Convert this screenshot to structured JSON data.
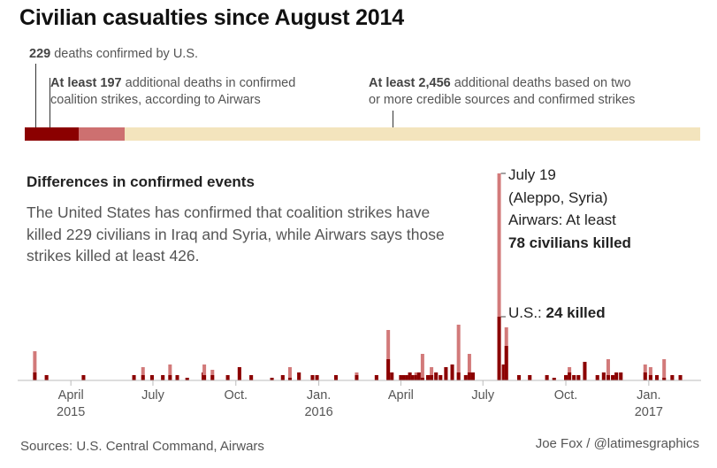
{
  "title": "Civilian casualties since August 2014",
  "summary": {
    "us_label": {
      "bold": "229",
      "text": " deaths confirmed by U.S."
    },
    "airwars_label": {
      "bold": "At least 197",
      "text1": " additional deaths in confirmed",
      "text2": "coalition strikes, according to Airwars"
    },
    "credible_label": {
      "bold": "At least 2,456",
      "text1": " additional deaths based on two",
      "text2": "or more credible sources and confirmed strikes"
    },
    "segments": [
      {
        "name": "U.S. confirmed",
        "value": 229,
        "color": "#8b0000"
      },
      {
        "name": "Airwars additional",
        "value": 197,
        "color": "#cd7070"
      },
      {
        "name": "Credible sources additional",
        "value": 2456,
        "color": "#f3e4bd"
      }
    ]
  },
  "subheading": "Differences in confirmed events",
  "description": "The United States has confirmed that coalition strikes have killed 229 civilians in Iraq and Syria, while Airwars says those strikes killed at least 426.",
  "annotation": {
    "line1": "July 19",
    "line2": "(Aleppo, Syria)",
    "line3": "Airwars: At least",
    "line4": "78 civilians killed",
    "us_prefix": "U.S.: ",
    "us_bold": "24 killed"
  },
  "source": "Sources: U.S. Central Command, Airwars",
  "credit": "Joe Fox / @latimesgraphics",
  "colors": {
    "us": "#8b0000",
    "airwars": "#d27a7a",
    "credible": "#f3e4bd"
  },
  "chart_data": {
    "type": "bar",
    "title": "Differences in confirmed events",
    "x_range": [
      "2015-02-01",
      "2017-02-28"
    ],
    "ylim": [
      0,
      80
    ],
    "x_ticks": [
      {
        "date": "2015-04-01",
        "label": "April",
        "sub": "2015"
      },
      {
        "date": "2015-07-01",
        "label": "July",
        "sub": ""
      },
      {
        "date": "2015-10-01",
        "label": "Oct.",
        "sub": ""
      },
      {
        "date": "2016-01-01",
        "label": "Jan.",
        "sub": "2016"
      },
      {
        "date": "2016-04-01",
        "label": "April",
        "sub": ""
      },
      {
        "date": "2016-07-01",
        "label": "July",
        "sub": ""
      },
      {
        "date": "2016-10-01",
        "label": "Oct.",
        "sub": ""
      },
      {
        "date": "2017-01-01",
        "label": "Jan.",
        "sub": "2017"
      }
    ],
    "series": [
      {
        "name": "Airwars",
        "color": "#d27a7a"
      },
      {
        "name": "U.S.",
        "color": "#8b0000"
      }
    ],
    "events": [
      {
        "date": "2015-02-20",
        "us": 3,
        "airwars": 11
      },
      {
        "date": "2015-03-05",
        "us": 2,
        "airwars": 2
      },
      {
        "date": "2015-04-15",
        "us": 2,
        "airwars": 2
      },
      {
        "date": "2015-06-10",
        "us": 2,
        "airwars": 2
      },
      {
        "date": "2015-06-20",
        "us": 2,
        "airwars": 5
      },
      {
        "date": "2015-06-30",
        "us": 2,
        "airwars": 2
      },
      {
        "date": "2015-07-12",
        "us": 2,
        "airwars": 2
      },
      {
        "date": "2015-07-20",
        "us": 2,
        "airwars": 6
      },
      {
        "date": "2015-07-28",
        "us": 2,
        "airwars": 2
      },
      {
        "date": "2015-08-08",
        "us": 1,
        "airwars": 1
      },
      {
        "date": "2015-08-26",
        "us": 3,
        "airwars": 3
      },
      {
        "date": "2015-08-27",
        "us": 2,
        "airwars": 6
      },
      {
        "date": "2015-09-05",
        "us": 2,
        "airwars": 4
      },
      {
        "date": "2015-09-22",
        "us": 2,
        "airwars": 2
      },
      {
        "date": "2015-10-05",
        "us": 5,
        "airwars": 5
      },
      {
        "date": "2015-10-18",
        "us": 2,
        "airwars": 2
      },
      {
        "date": "2015-11-10",
        "us": 1,
        "airwars": 1
      },
      {
        "date": "2015-11-22",
        "us": 2,
        "airwars": 2
      },
      {
        "date": "2015-11-30",
        "us": 1,
        "airwars": 5
      },
      {
        "date": "2015-12-10",
        "us": 3,
        "airwars": 3
      },
      {
        "date": "2015-12-25",
        "us": 2,
        "airwars": 2
      },
      {
        "date": "2015-12-30",
        "us": 2,
        "airwars": 2
      },
      {
        "date": "2016-01-20",
        "us": 2,
        "airwars": 2
      },
      {
        "date": "2016-02-12",
        "us": 2,
        "airwars": 3
      },
      {
        "date": "2016-03-05",
        "us": 2,
        "airwars": 2
      },
      {
        "date": "2016-03-18",
        "us": 8,
        "airwars": 19
      },
      {
        "date": "2016-03-22",
        "us": 3,
        "airwars": 3
      },
      {
        "date": "2016-04-01",
        "us": 2,
        "airwars": 2
      },
      {
        "date": "2016-04-04",
        "us": 2,
        "airwars": 2
      },
      {
        "date": "2016-04-08",
        "us": 2,
        "airwars": 2
      },
      {
        "date": "2016-04-11",
        "us": 3,
        "airwars": 3
      },
      {
        "date": "2016-04-14",
        "us": 2,
        "airwars": 2
      },
      {
        "date": "2016-04-18",
        "us": 2,
        "airwars": 3
      },
      {
        "date": "2016-04-21",
        "us": 3,
        "airwars": 3
      },
      {
        "date": "2016-04-25",
        "us": 1,
        "airwars": 10
      },
      {
        "date": "2016-05-01",
        "us": 2,
        "airwars": 2
      },
      {
        "date": "2016-05-05",
        "us": 2,
        "airwars": 5
      },
      {
        "date": "2016-05-10",
        "us": 3,
        "airwars": 3
      },
      {
        "date": "2016-05-15",
        "us": 2,
        "airwars": 2
      },
      {
        "date": "2016-05-21",
        "us": 5,
        "airwars": 5
      },
      {
        "date": "2016-05-28",
        "us": 6,
        "airwars": 6
      },
      {
        "date": "2016-06-04",
        "us": 3,
        "airwars": 21
      },
      {
        "date": "2016-06-12",
        "us": 2,
        "airwars": 2
      },
      {
        "date": "2016-06-16",
        "us": 3,
        "airwars": 10
      },
      {
        "date": "2016-06-20",
        "us": 3,
        "airwars": 3
      },
      {
        "date": "2016-07-19",
        "us": 24,
        "airwars": 78
      },
      {
        "date": "2016-07-24",
        "us": 6,
        "airwars": 6
      },
      {
        "date": "2016-07-27",
        "us": 13,
        "airwars": 20
      },
      {
        "date": "2016-08-10",
        "us": 2,
        "airwars": 2
      },
      {
        "date": "2016-08-22",
        "us": 2,
        "airwars": 2
      },
      {
        "date": "2016-09-10",
        "us": 2,
        "airwars": 2
      },
      {
        "date": "2016-09-18",
        "us": 1,
        "airwars": 1
      },
      {
        "date": "2016-10-01",
        "us": 2,
        "airwars": 2
      },
      {
        "date": "2016-10-05",
        "us": 3,
        "airwars": 5
      },
      {
        "date": "2016-10-10",
        "us": 2,
        "airwars": 2
      },
      {
        "date": "2016-10-15",
        "us": 2,
        "airwars": 2
      },
      {
        "date": "2016-10-22",
        "us": 7,
        "airwars": 7
      },
      {
        "date": "2016-11-05",
        "us": 2,
        "airwars": 2
      },
      {
        "date": "2016-11-12",
        "us": 3,
        "airwars": 3
      },
      {
        "date": "2016-11-17",
        "us": 2,
        "airwars": 8
      },
      {
        "date": "2016-11-22",
        "us": 2,
        "airwars": 2
      },
      {
        "date": "2016-11-26",
        "us": 3,
        "airwars": 3
      },
      {
        "date": "2016-12-01",
        "us": 3,
        "airwars": 3
      },
      {
        "date": "2016-12-28",
        "us": 3,
        "airwars": 6
      },
      {
        "date": "2017-01-03",
        "us": 2,
        "airwars": 5
      },
      {
        "date": "2017-01-10",
        "us": 2,
        "airwars": 2
      },
      {
        "date": "2017-01-18",
        "us": 1,
        "airwars": 8
      },
      {
        "date": "2017-01-27",
        "us": 2,
        "airwars": 2
      },
      {
        "date": "2017-02-05",
        "us": 2,
        "airwars": 2
      }
    ]
  }
}
